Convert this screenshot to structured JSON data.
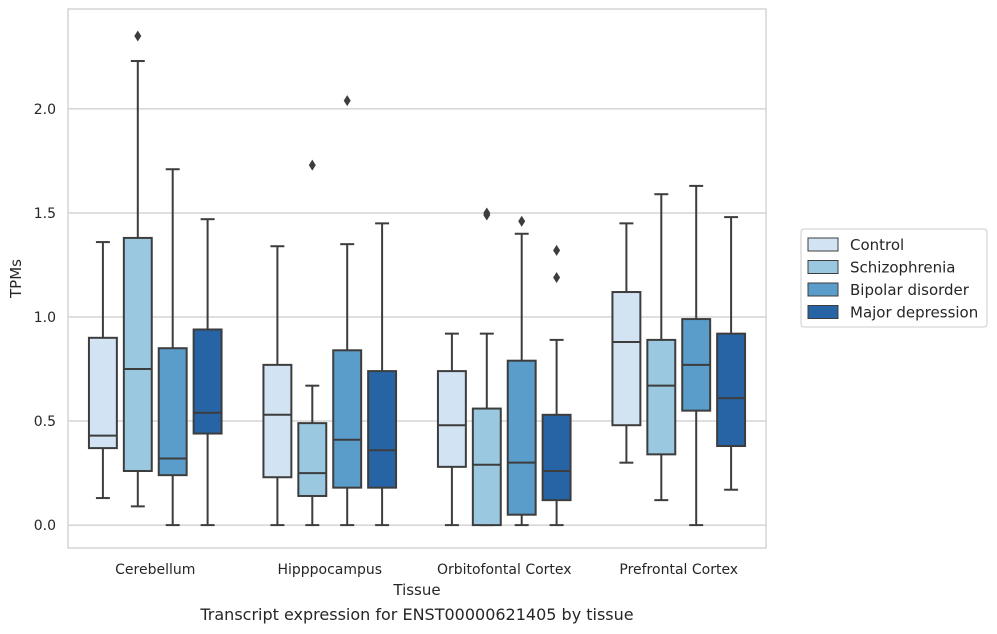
{
  "caption": "Transcript expression for ENST00000621405 by tissue",
  "chart_data": {
    "type": "boxplot",
    "xlabel": "Tissue",
    "ylabel": "TPMs",
    "ylim": [
      -0.11,
      2.48
    ],
    "yticks": [
      0.0,
      0.5,
      1.0,
      1.5,
      2.0
    ],
    "ytick_labels": [
      "0.0",
      "0.5",
      "1.0",
      "1.5",
      "2.0"
    ],
    "grid": "horizontal",
    "legend_position": "right",
    "categories": [
      "Cerebellum",
      "Hipppocampus",
      "Orbitofontal Cortex",
      "Prefrontal Cortex"
    ],
    "series": [
      {
        "name": "Control",
        "color": "#d2e3f3",
        "boxes": [
          {
            "whisker_low": 0.13,
            "q1": 0.37,
            "median": 0.43,
            "q3": 0.9,
            "whisker_high": 1.36,
            "outliers": []
          },
          {
            "whisker_low": 0.0,
            "q1": 0.23,
            "median": 0.53,
            "q3": 0.77,
            "whisker_high": 1.34,
            "outliers": []
          },
          {
            "whisker_low": 0.0,
            "q1": 0.28,
            "median": 0.48,
            "q3": 0.74,
            "whisker_high": 0.92,
            "outliers": []
          },
          {
            "whisker_low": 0.3,
            "q1": 0.48,
            "median": 0.88,
            "q3": 1.12,
            "whisker_high": 1.45,
            "outliers": []
          }
        ]
      },
      {
        "name": "Schizophrenia",
        "color": "#9ac8e0",
        "boxes": [
          {
            "whisker_low": 0.09,
            "q1": 0.26,
            "median": 0.75,
            "q3": 1.38,
            "whisker_high": 2.23,
            "outliers": [
              2.35
            ]
          },
          {
            "whisker_low": 0.0,
            "q1": 0.14,
            "median": 0.25,
            "q3": 0.49,
            "whisker_high": 0.67,
            "outliers": [
              1.73
            ]
          },
          {
            "whisker_low": 0.0,
            "q1": 0.0,
            "median": 0.29,
            "q3": 0.56,
            "whisker_high": 0.92,
            "outliers": [
              1.49,
              1.5
            ]
          },
          {
            "whisker_low": 0.12,
            "q1": 0.34,
            "median": 0.67,
            "q3": 0.89,
            "whisker_high": 1.59,
            "outliers": []
          }
        ]
      },
      {
        "name": "Bipolar disorder",
        "color": "#5a9dcb",
        "boxes": [
          {
            "whisker_low": 0.0,
            "q1": 0.24,
            "median": 0.32,
            "q3": 0.85,
            "whisker_high": 1.71,
            "outliers": []
          },
          {
            "whisker_low": 0.0,
            "q1": 0.18,
            "median": 0.41,
            "q3": 0.84,
            "whisker_high": 1.35,
            "outliers": [
              2.04
            ]
          },
          {
            "whisker_low": 0.0,
            "q1": 0.05,
            "median": 0.3,
            "q3": 0.79,
            "whisker_high": 1.4,
            "outliers": [
              1.46
            ]
          },
          {
            "whisker_low": 0.0,
            "q1": 0.55,
            "median": 0.77,
            "q3": 0.99,
            "whisker_high": 1.63,
            "outliers": []
          }
        ]
      },
      {
        "name": "Major depression",
        "color": "#2664a6",
        "boxes": [
          {
            "whisker_low": 0.0,
            "q1": 0.44,
            "median": 0.54,
            "q3": 0.94,
            "whisker_high": 1.47,
            "outliers": []
          },
          {
            "whisker_low": 0.0,
            "q1": 0.18,
            "median": 0.36,
            "q3": 0.74,
            "whisker_high": 1.45,
            "outliers": []
          },
          {
            "whisker_low": 0.0,
            "q1": 0.12,
            "median": 0.26,
            "q3": 0.53,
            "whisker_high": 0.89,
            "outliers": [
              1.19,
              1.32
            ]
          },
          {
            "whisker_low": 0.17,
            "q1": 0.38,
            "median": 0.61,
            "q3": 0.92,
            "whisker_high": 1.48,
            "outliers": []
          }
        ]
      }
    ]
  }
}
